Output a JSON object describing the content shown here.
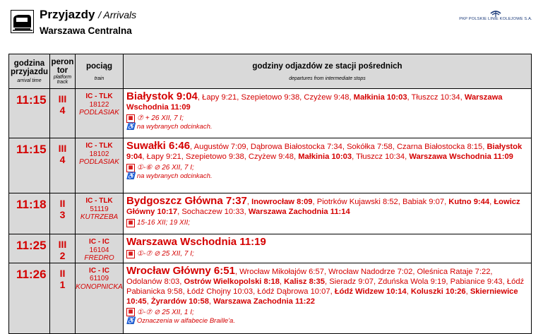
{
  "header": {
    "title": "Przyjazdy",
    "title_en": "/ Arrivals",
    "station": "Warszawa Centralna",
    "operator": "PKP POLSKIE LINIE KOLEJOWE S.A."
  },
  "columns": {
    "time": "godzina przyjazdu",
    "time_en": "arrival time",
    "platform": "peron tor",
    "platform_en": "platform track",
    "train": "pociąg",
    "train_en": "train",
    "via": "godziny odjazdów ze stacji pośrednich",
    "via_en": "departures from intermediate stops"
  },
  "rows": [
    {
      "time": "11:15",
      "platform": "III",
      "track": "4",
      "train_code": "IC - TLK",
      "train_number": "18122",
      "train_name": "PODLASIAK",
      "origin": "Białystok 9:04",
      "via_parts": [
        {
          "t": ", Łapy 9:21, Szepietowo 9:38, Czyżew 9:48, ",
          "b": false
        },
        {
          "t": "Małkinia 10:03",
          "b": true
        },
        {
          "t": ", Tłuszcz 10:34, ",
          "b": false
        },
        {
          "t": "Warszawa Wschodnia 11:09",
          "b": true
        }
      ],
      "note": "⑦ + 26 XII, 7 I;",
      "note2": "na wybranych odcinkach."
    },
    {
      "time": "11:15",
      "platform": "III",
      "track": "4",
      "train_code": "IC - TLK",
      "train_number": "18102",
      "train_name": "PODLASIAK",
      "origin": "Suwałki 6:46",
      "via_parts": [
        {
          "t": ", Augustów 7:09, Dąbrowa Białostocka 7:34, Sokółka 7:58, Czarna Białostocka 8:15, ",
          "b": false
        },
        {
          "t": "Białystok 9:04",
          "b": true
        },
        {
          "t": ", Łapy 9:21, Szepietowo 9:38, Czyżew 9:48, ",
          "b": false
        },
        {
          "t": "Małkinia 10:03",
          "b": true
        },
        {
          "t": ", Tłuszcz 10:34, ",
          "b": false
        },
        {
          "t": "Warszawa Wschodnia 11:09",
          "b": true
        }
      ],
      "note": "①-⑥ ⊘ 26 XII, 7 I;",
      "note2": "na wybranych odcinkach."
    },
    {
      "time": "11:18",
      "platform": "II",
      "track": "3",
      "train_code": "IC - TLK",
      "train_number": "51119",
      "train_name": "KUTRZEBA",
      "origin": "Bydgoszcz Główna 7:37",
      "via_parts": [
        {
          "t": ", ",
          "b": false
        },
        {
          "t": "Inowrocław 8:09",
          "b": true
        },
        {
          "t": ", Piotrków Kujawski 8:52, Babiak 9:07, ",
          "b": false
        },
        {
          "t": "Kutno 9:44",
          "b": true
        },
        {
          "t": ", ",
          "b": false
        },
        {
          "t": "Łowicz Główny 10:17",
          "b": true
        },
        {
          "t": ", Sochaczew 10:33, ",
          "b": false
        },
        {
          "t": "Warszawa Zachodnia 11:14",
          "b": true
        }
      ],
      "note": "15-16 XII; 19 XII;",
      "note2": ""
    },
    {
      "time": "11:25",
      "platform": "III",
      "track": "2",
      "train_code": "IC - IC",
      "train_number": "16104",
      "train_name": "FREDRO",
      "origin": "Warszawa Wschodnia 11:19",
      "via_parts": [],
      "note": "①-⑦ ⊘ 25 XII, 7 I;",
      "note2": ""
    },
    {
      "time": "11:26",
      "platform": "II",
      "track": "1",
      "train_code": "IC - IC",
      "train_number": "61109",
      "train_name": "KONOPNICKA",
      "origin": "Wrocław Główny 6:51",
      "via_parts": [
        {
          "t": ", Wrocław Mikołajów 6:57, Wrocław Nadodrze 7:02, Oleśnica Rataje 7:22, Odolanów 8:03, ",
          "b": false
        },
        {
          "t": "Ostrów Wielkopolski 8:18",
          "b": true
        },
        {
          "t": ", ",
          "b": false
        },
        {
          "t": "Kalisz 8:35",
          "b": true
        },
        {
          "t": ", Sieradz 9:07, Zduńska Wola 9:19, Pabianice 9:43, Łódź Pabianicka 9:58, Łódź Chojny 10:03, Łódź Dąbrowa 10:07, ",
          "b": false
        },
        {
          "t": "Łódź Widzew 10:14",
          "b": true
        },
        {
          "t": ", ",
          "b": false
        },
        {
          "t": "Koluszki 10:26",
          "b": true
        },
        {
          "t": ", ",
          "b": false
        },
        {
          "t": "Skierniewice 10:45",
          "b": true
        },
        {
          "t": ", ",
          "b": false
        },
        {
          "t": "Żyrardów 10:58",
          "b": true
        },
        {
          "t": ", ",
          "b": false
        },
        {
          "t": "Warszawa Zachodnia 11:22",
          "b": true
        }
      ],
      "note": "①-⑦ ⊘ 25 XII, 1 I;",
      "note2": "Oznaczenia w alfabecie Braille'a."
    }
  ],
  "colors": {
    "accent_red": "#d40000",
    "header_gray": "#d9d9d9",
    "pkp_blue": "#1c3b7a"
  },
  "icons": {
    "header_logo": "train-front-icon",
    "calendar": "calendar-icon",
    "wheelchair": "wheelchair-icon"
  }
}
